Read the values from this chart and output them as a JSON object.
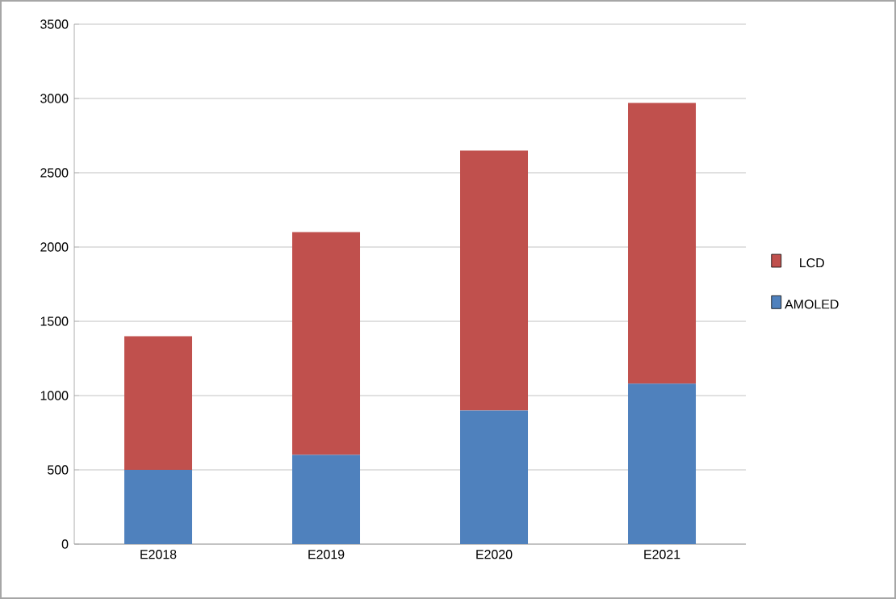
{
  "chart_data": {
    "type": "bar",
    "stacked": true,
    "categories": [
      "E2018",
      "E2019",
      "E2020",
      "E2021"
    ],
    "series": [
      {
        "name": "AMOLED",
        "color": "#4f81bd",
        "values": [
          500,
          600,
          900,
          1080
        ]
      },
      {
        "name": "LCD",
        "color": "#c0504d",
        "values": [
          900,
          1500,
          1750,
          1890
        ]
      }
    ],
    "ylim": [
      0,
      3500
    ],
    "yticks": [
      0,
      500,
      1000,
      1500,
      2000,
      2500,
      3000,
      3500
    ],
    "grid": "y",
    "legend": "right"
  }
}
